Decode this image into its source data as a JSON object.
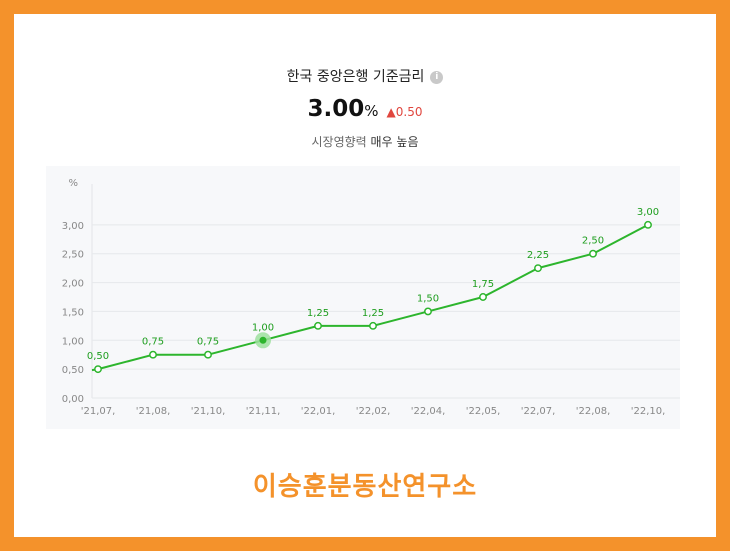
{
  "header": {
    "title": "한국 중앙은행 기준금리",
    "info_icon_glyph": "i",
    "value": "3.00",
    "unit": "%",
    "change_arrow": "▲",
    "change": "0.50",
    "influence_label": "시장영향력",
    "influence_value": "매우 높음"
  },
  "colors": {
    "frame": "#f4922b",
    "line": "#2db52d",
    "change_up": "#e0463e"
  },
  "watermark": "이승훈분동산연구소",
  "chart_data": {
    "type": "line",
    "title": "",
    "ylabel": "%",
    "xlabel": "",
    "ylim": [
      0,
      3.5
    ],
    "yticks": [
      "0,00",
      "0,50",
      "1,00",
      "1,50",
      "2,00",
      "2,50",
      "3,00"
    ],
    "categories": [
      "'21,07,",
      "'21,08,",
      "'21,10,",
      "'21,11,",
      "'22,01,",
      "'22,02,",
      "'22,04,",
      "'22,05,",
      "'22,07,",
      "'22,08,",
      "'22,10,"
    ],
    "series": [
      {
        "values": [
          0.5,
          0.75,
          0.75,
          1.0,
          1.25,
          1.25,
          1.5,
          1.75,
          2.25,
          2.5,
          3.0
        ],
        "labels": [
          "0,50",
          "0,75",
          "0,75",
          "1,00",
          "1,25",
          "1,25",
          "1,50",
          "1,75",
          "2,25",
          "2,50",
          "3,00"
        ]
      }
    ],
    "highlight_index": 3,
    "grid": true
  }
}
